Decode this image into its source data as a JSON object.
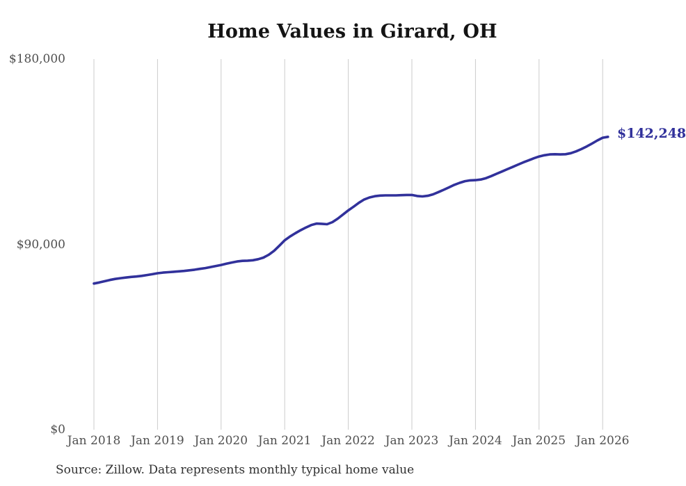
{
  "page": {
    "background_color": "#ffffff"
  },
  "chart_data": {
    "type": "line",
    "title": "Home Values in Girard, OH",
    "source_note": "Source: Zillow. Data represents monthly typical home value",
    "xlabel": "",
    "ylabel": "",
    "ylim": [
      0,
      180000
    ],
    "grid": "vertical-only",
    "grid_color": "#cbcbcb",
    "legend_position": "none",
    "line_color": "#31319b",
    "tick_text_color": "#4f4f4f",
    "latest_value": 142248,
    "latest_point_label": "$142,248",
    "x_ticks": [
      "Jan 2018",
      "Jan 2019",
      "Jan 2020",
      "Jan 2021",
      "Jan 2022",
      "Jan 2023",
      "Jan 2024",
      "Jan 2025",
      "Jan 2026"
    ],
    "y_ticks": [
      {
        "label": "$0",
        "value": 0
      },
      {
        "label": "$90,000",
        "value": 90000
      },
      {
        "label": "$180,000",
        "value": 180000
      }
    ],
    "series": [
      {
        "name": "Monthly typical home value",
        "start_month": "Jan 2018",
        "end_month": "Feb 2026",
        "months_per_point": 1,
        "values": [
          71000,
          71500,
          72100,
          72700,
          73200,
          73600,
          73900,
          74200,
          74400,
          74700,
          75100,
          75500,
          76000,
          76300,
          76500,
          76700,
          76900,
          77100,
          77400,
          77700,
          78100,
          78500,
          79000,
          79500,
          80000,
          80600,
          81200,
          81700,
          82000,
          82100,
          82300,
          82800,
          83600,
          85000,
          86900,
          89400,
          92000,
          93800,
          95400,
          96900,
          98200,
          99400,
          100100,
          100000,
          99800,
          100800,
          102500,
          104500,
          106500,
          108300,
          110200,
          111800,
          112800,
          113400,
          113700,
          113800,
          113800,
          113800,
          113900,
          114000,
          114000,
          113500,
          113300,
          113600,
          114300,
          115400,
          116500,
          117700,
          118900,
          119900,
          120700,
          121100,
          121200,
          121500,
          122200,
          123200,
          124300,
          125400,
          126500,
          127600,
          128700,
          129800,
          130800,
          131800,
          132700,
          133300,
          133700,
          133800,
          133700,
          133800,
          134300,
          135200,
          136300,
          137600,
          139000,
          140500,
          141800,
          142248
        ]
      }
    ]
  }
}
